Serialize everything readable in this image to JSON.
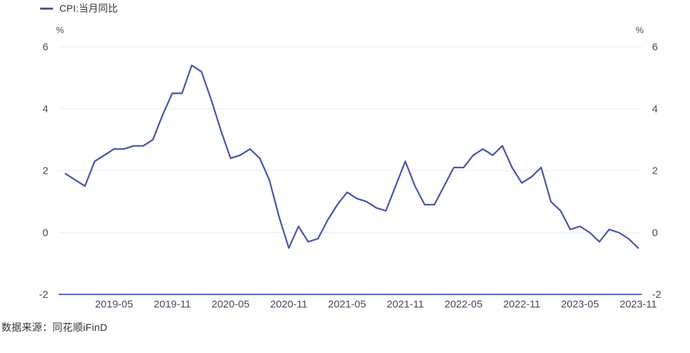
{
  "legend": {
    "series_label": "CPI:当月同比"
  },
  "footer": {
    "source_text": "数据来源：同花顺iFinD"
  },
  "y_axis": {
    "unit": "%",
    "ticks": [
      6,
      4,
      2,
      0,
      -2
    ]
  },
  "x_axis": {
    "tick_labels": [
      "2019-05",
      "2019-11",
      "2020-05",
      "2020-11",
      "2021-05",
      "2021-11",
      "2022-05",
      "2022-11",
      "2023-05",
      "2023-11"
    ]
  },
  "colors": {
    "line": "#4857A5",
    "axis_line": "#5767AD",
    "gridline": "#EDEDF5",
    "tick_text": "#464B5E",
    "legend_text": "#2F2F2F",
    "footer_text": "#333333",
    "background": "#FFFFFF"
  },
  "chart_data": {
    "type": "line",
    "title": "",
    "xlabel": "",
    "ylabel": "%",
    "ylim": [
      -2,
      6
    ],
    "grid": true,
    "legend_position": "top-left",
    "series": [
      {
        "name": "CPI:当月同比",
        "x": [
          "2018-12",
          "2019-01",
          "2019-02",
          "2019-03",
          "2019-04",
          "2019-05",
          "2019-06",
          "2019-07",
          "2019-08",
          "2019-09",
          "2019-10",
          "2019-11",
          "2019-12",
          "2020-01",
          "2020-02",
          "2020-03",
          "2020-04",
          "2020-05",
          "2020-06",
          "2020-07",
          "2020-08",
          "2020-09",
          "2020-10",
          "2020-11",
          "2020-12",
          "2021-01",
          "2021-02",
          "2021-03",
          "2021-04",
          "2021-05",
          "2021-06",
          "2021-07",
          "2021-08",
          "2021-09",
          "2021-10",
          "2021-11",
          "2021-12",
          "2022-01",
          "2022-02",
          "2022-03",
          "2022-04",
          "2022-05",
          "2022-06",
          "2022-07",
          "2022-08",
          "2022-09",
          "2022-10",
          "2022-11",
          "2022-12",
          "2023-01",
          "2023-02",
          "2023-03",
          "2023-04",
          "2023-05",
          "2023-06",
          "2023-07",
          "2023-08",
          "2023-09",
          "2023-10",
          "2023-11"
        ],
        "values": [
          1.9,
          1.7,
          1.5,
          2.3,
          2.5,
          2.7,
          2.7,
          2.8,
          2.8,
          3.0,
          3.8,
          4.5,
          4.5,
          5.4,
          5.2,
          4.3,
          3.3,
          2.4,
          2.5,
          2.7,
          2.4,
          1.7,
          0.5,
          -0.5,
          0.2,
          -0.3,
          -0.2,
          0.4,
          0.9,
          1.3,
          1.1,
          1.0,
          0.8,
          0.7,
          1.5,
          2.3,
          1.5,
          0.9,
          0.9,
          1.5,
          2.1,
          2.1,
          2.5,
          2.7,
          2.5,
          2.8,
          2.1,
          1.6,
          1.8,
          2.1,
          1.0,
          0.7,
          0.1,
          0.2,
          0.0,
          -0.3,
          0.1,
          0.0,
          -0.2,
          -0.5
        ]
      }
    ]
  }
}
